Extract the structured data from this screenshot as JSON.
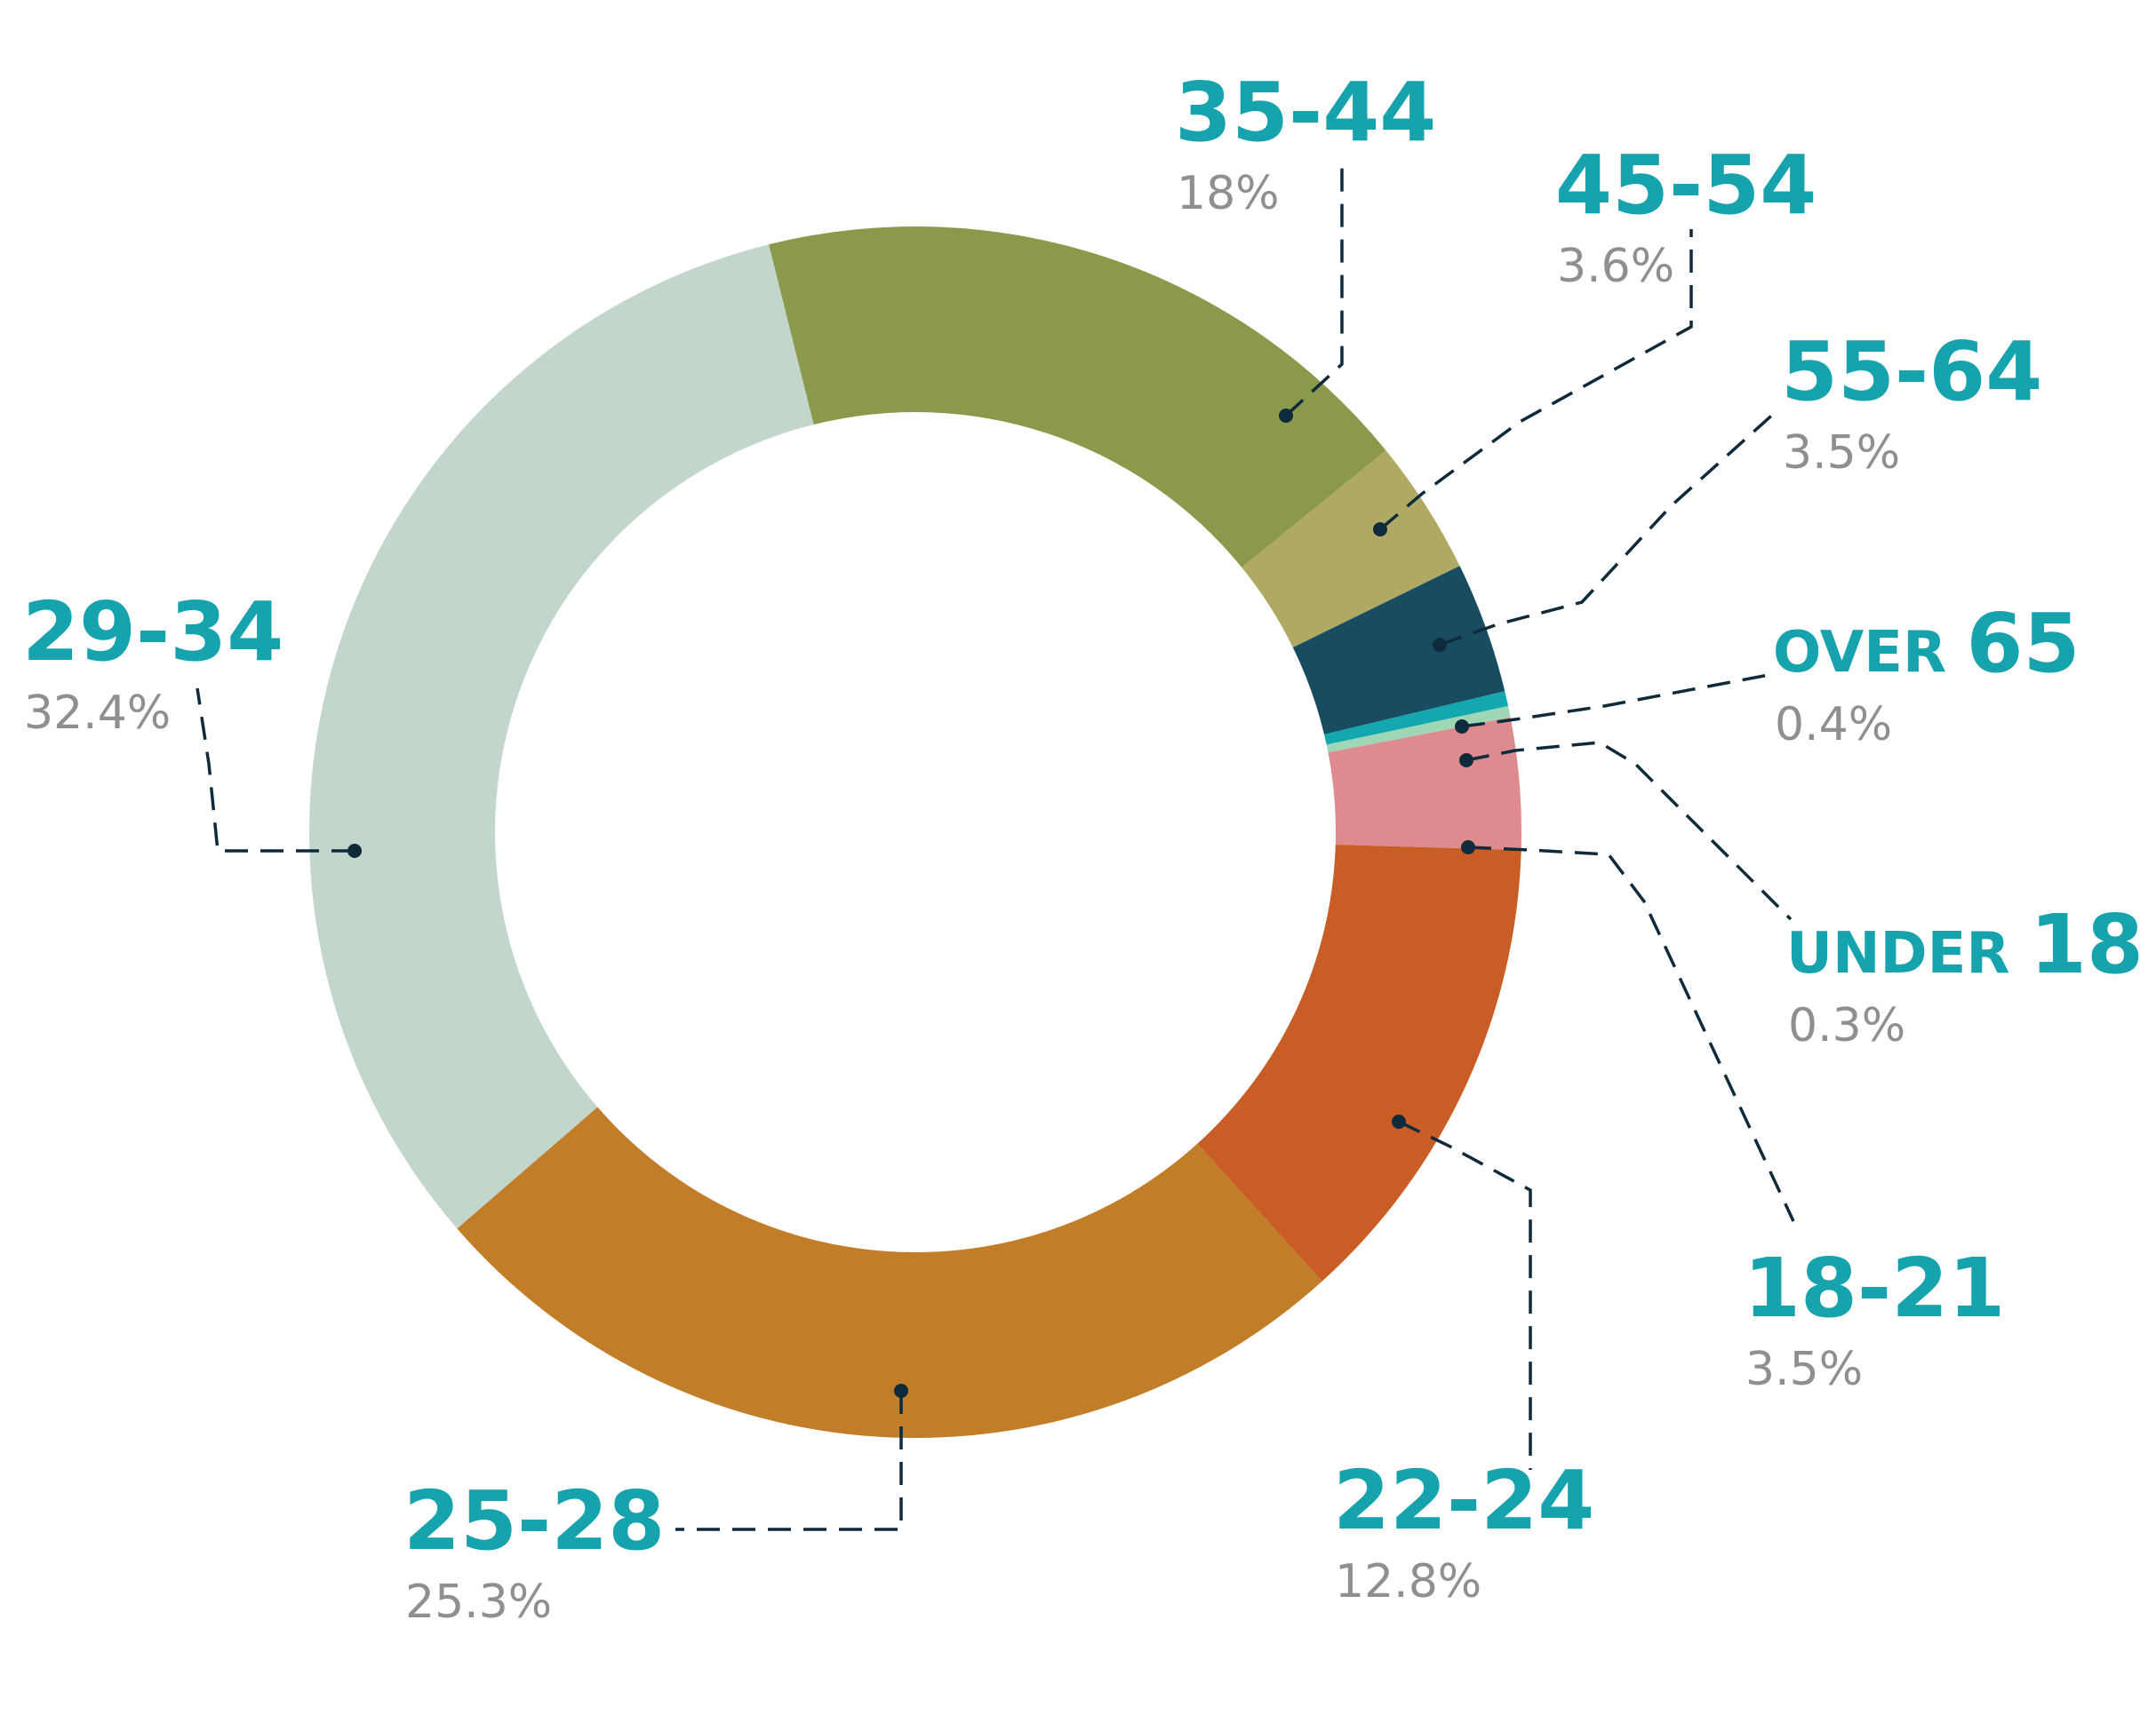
{
  "chart_data": {
    "type": "donut",
    "title": "",
    "start_angle_deg": -14,
    "direction": "clockwise",
    "slices": [
      {
        "label": "35-44",
        "value": 18,
        "value_label": "18%",
        "color": "#8a994a"
      },
      {
        "label": "45-54",
        "value": 3.6,
        "value_label": "3.6%",
        "color": "#afa964"
      },
      {
        "label": "55-64",
        "value": 3.5,
        "value_label": "3.5%",
        "color": "#184c61"
      },
      {
        "label": "OVER 65",
        "value": 0.4,
        "value_label": "0.4%",
        "color": "#13a7b0"
      },
      {
        "label": "UNDER 18",
        "value": 0.3,
        "value_label": "0.3%",
        "color": "#9ed6b6"
      },
      {
        "label": "18-21",
        "value": 3.5,
        "value_label": "3.5%",
        "color": "#dd8b8e"
      },
      {
        "label": "22-24",
        "value": 12.8,
        "value_label": "12.8%",
        "color": "#c85e25"
      },
      {
        "label": "25-28",
        "value": 25.3,
        "value_label": "25.3%",
        "color": "#c27d28"
      },
      {
        "label": "29-34",
        "value": 32.4,
        "value_label": "32.4%",
        "color": "#c2d6cb"
      }
    ]
  },
  "colors": {
    "label_text": "#16a3ad",
    "percent_text": "#8f8f8f",
    "leader_line": "#0f2a3a",
    "background": "#ffffff"
  }
}
